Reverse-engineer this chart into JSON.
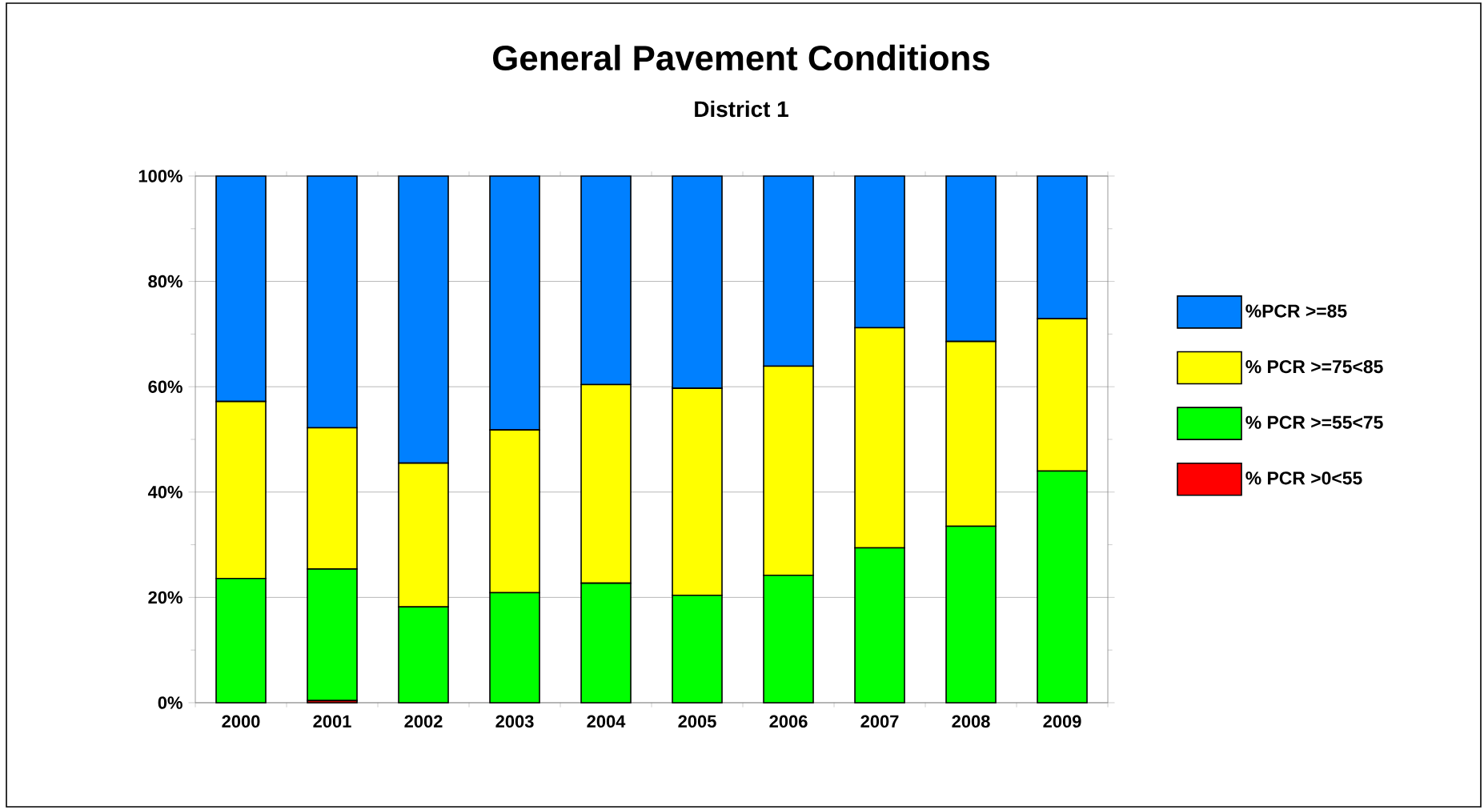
{
  "chart_data": {
    "type": "bar",
    "title": "General Pavement Conditions",
    "subtitle": "District 1",
    "categories": [
      "2000",
      "2001",
      "2002",
      "2003",
      "2004",
      "2005",
      "2006",
      "2007",
      "2008",
      "2009"
    ],
    "stacked": true,
    "ylim": [
      0,
      100
    ],
    "yticks": [
      {
        "value": 0,
        "label": "0%"
      },
      {
        "value": 20,
        "label": "20%"
      },
      {
        "value": 40,
        "label": "40%"
      },
      {
        "value": 60,
        "label": "60%"
      },
      {
        "value": 80,
        "label": "80%"
      },
      {
        "value": 100,
        "label": "100%"
      }
    ],
    "grid": "y",
    "legend": "right",
    "series": [
      {
        "name": "% PCR >0<55",
        "color": "#ff0000",
        "values": [
          0,
          0.4,
          0,
          0,
          0,
          0,
          0,
          0,
          0,
          0
        ]
      },
      {
        "name": "% PCR >=55<75",
        "color": "#00ff00",
        "values": [
          23.6,
          25.0,
          18.2,
          20.9,
          22.7,
          20.4,
          24.2,
          29.4,
          33.5,
          44.0
        ]
      },
      {
        "name": "% PCR >=75<85",
        "color": "#ffff00",
        "values": [
          33.6,
          26.8,
          27.3,
          30.9,
          37.7,
          39.3,
          39.7,
          41.8,
          35.1,
          28.9
        ]
      },
      {
        "name": "%PCR >=85",
        "color": "#0080ff",
        "values": [
          42.8,
          47.8,
          54.5,
          48.2,
          39.6,
          40.3,
          36.1,
          28.8,
          31.4,
          27.1
        ]
      }
    ]
  }
}
